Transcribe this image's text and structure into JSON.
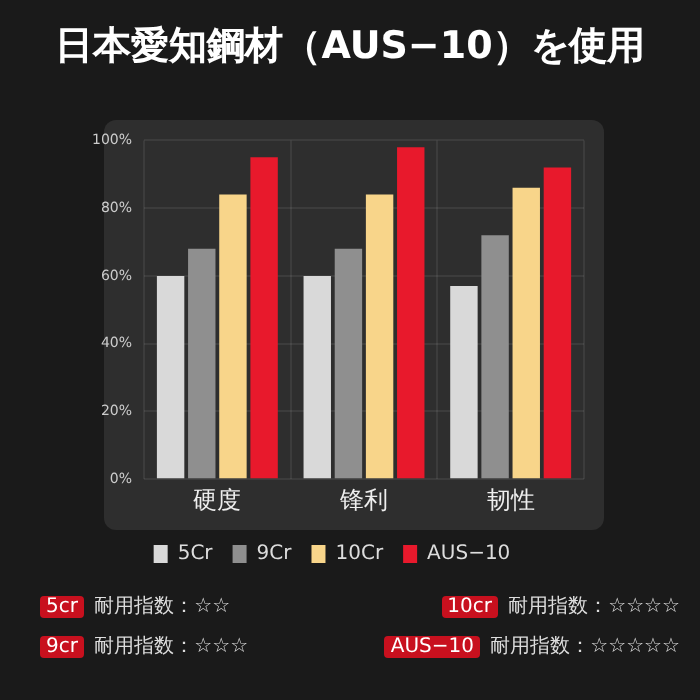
{
  "chart_data": {
    "type": "bar",
    "title": "日本愛知鋼材（AUS−10）を使用",
    "categories": [
      "硬度",
      "锋利",
      "韧性"
    ],
    "series": [
      {
        "name": "5Cr",
        "color": "#d9d9d9",
        "values": [
          60,
          60,
          57
        ]
      },
      {
        "name": "9Cr",
        "color": "#8f8f8f",
        "values": [
          68,
          68,
          72
        ]
      },
      {
        "name": "10Cr",
        "color": "#f8d58a",
        "values": [
          84,
          84,
          86
        ]
      },
      {
        "name": "AUS−10",
        "color": "#e8192c",
        "values": [
          95,
          98,
          92
        ]
      }
    ],
    "ylim": [
      0,
      100
    ],
    "yticks": [
      {
        "value": 0,
        "label": "0%"
      },
      {
        "value": 20,
        "label": "20%"
      },
      {
        "value": 40,
        "label": "40%"
      },
      {
        "value": 60,
        "label": "60%"
      },
      {
        "value": 80,
        "label": "80%"
      },
      {
        "value": 100,
        "label": "100%"
      }
    ],
    "grid": true,
    "legend": "bottom",
    "annotations": [
      "5cr 耐用指数：☆☆",
      "10cr 耐用指数：☆☆☆☆",
      "9cr 耐用指数：☆☆☆",
      "AUS−10 耐用指数：☆☆☆☆☆"
    ]
  }
}
